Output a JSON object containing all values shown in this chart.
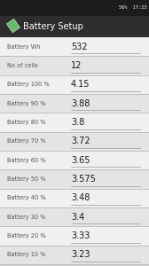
{
  "title": "Battery Setup",
  "status_bar_right": "56%  17:23",
  "rows": [
    {
      "label": "Battery Wh",
      "value": "532"
    },
    {
      "label": "No of cells",
      "value": "12"
    },
    {
      "label": "Battery 100 %",
      "value": "4.15"
    },
    {
      "label": "Battery 90 %",
      "value": "3.88"
    },
    {
      "label": "Battery 80 %",
      "value": "3.8"
    },
    {
      "label": "Battery 70 %",
      "value": "3.72"
    },
    {
      "label": "Battery 60 %",
      "value": "3.65"
    },
    {
      "label": "Battery 50 %",
      "value": "3.575"
    },
    {
      "label": "Battery 40 %",
      "value": "3.48"
    },
    {
      "label": "Battery 30 %",
      "value": "3.4"
    },
    {
      "label": "Battery 20 %",
      "value": "3.33"
    },
    {
      "label": "Battery 10 %",
      "value": "3.23"
    }
  ],
  "bg_color": "#d8d8d8",
  "status_bg": "#1c1c1c",
  "status_text_color": "#ffffff",
  "titlebar_bg": "#2e2e2e",
  "title_color": "#ffffff",
  "icon_color": "#66bb6a",
  "row_bg_even": "#f0f0f0",
  "row_bg_odd": "#e4e4e4",
  "label_color": "#555555",
  "value_color": "#1a1a1a",
  "divider_color": "#b0b0b0",
  "underline_color": "#999999",
  "label_fontsize": 4.8,
  "value_fontsize": 7.0,
  "title_fontsize": 7.0,
  "status_fontsize": 3.8
}
